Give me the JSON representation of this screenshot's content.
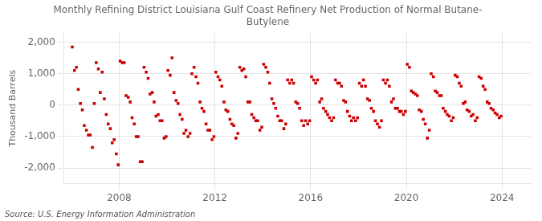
{
  "chart_data": {
    "type": "scatter",
    "title": "Monthly Refining District Louisiana Gulf Coast Refinery Net Production of Normal Butane-\nButylene",
    "ylabel": "Thousand Barrels",
    "annotation": "Source: U.S. Energy Information Administration",
    "color": "#cc0000",
    "marker": "square",
    "grid": true,
    "xlim": [
      2005.7,
      2025.2
    ],
    "xticks": [
      2008,
      2012,
      2016,
      2020,
      2024
    ],
    "ylim": [
      -2500,
      2300
    ],
    "yticks": [
      {
        "value": -2000,
        "label": "-2,000"
      },
      {
        "value": -1000,
        "label": "-1,000"
      },
      0,
      {
        "value": 1000,
        "label": "1,000"
      },
      {
        "value": 2000,
        "label": "2,000"
      }
    ],
    "x": [
      2006.04,
      2006.13,
      2006.21,
      2006.29,
      2006.38,
      2006.46,
      2006.54,
      2006.63,
      2006.71,
      2006.79,
      2006.88,
      2006.96,
      2007.04,
      2007.13,
      2007.21,
      2007.29,
      2007.38,
      2007.46,
      2007.54,
      2007.63,
      2007.71,
      2007.79,
      2007.88,
      2007.96,
      2008.04,
      2008.13,
      2008.21,
      2008.29,
      2008.38,
      2008.46,
      2008.54,
      2008.63,
      2008.71,
      2008.79,
      2008.88,
      2008.96,
      2009.04,
      2009.13,
      2009.21,
      2009.29,
      2009.38,
      2009.46,
      2009.54,
      2009.63,
      2009.71,
      2009.79,
      2009.88,
      2009.96,
      2010.04,
      2010.13,
      2010.21,
      2010.29,
      2010.38,
      2010.46,
      2010.54,
      2010.63,
      2010.71,
      2010.79,
      2010.88,
      2010.96,
      2011.04,
      2011.13,
      2011.21,
      2011.29,
      2011.38,
      2011.46,
      2011.54,
      2011.63,
      2011.71,
      2011.79,
      2011.88,
      2011.96,
      2012.04,
      2012.13,
      2012.21,
      2012.29,
      2012.38,
      2012.46,
      2012.54,
      2012.63,
      2012.71,
      2012.79,
      2012.88,
      2012.96,
      2013.04,
      2013.13,
      2013.21,
      2013.29,
      2013.38,
      2013.46,
      2013.54,
      2013.63,
      2013.71,
      2013.79,
      2013.88,
      2013.96,
      2014.04,
      2014.13,
      2014.21,
      2014.29,
      2014.38,
      2014.46,
      2014.54,
      2014.63,
      2014.71,
      2014.79,
      2014.88,
      2014.96,
      2015.04,
      2015.13,
      2015.21,
      2015.29,
      2015.38,
      2015.46,
      2015.54,
      2015.63,
      2015.71,
      2015.79,
      2015.88,
      2015.96,
      2016.04,
      2016.13,
      2016.21,
      2016.29,
      2016.38,
      2016.46,
      2016.54,
      2016.63,
      2016.71,
      2016.79,
      2016.88,
      2016.96,
      2017.04,
      2017.13,
      2017.21,
      2017.29,
      2017.38,
      2017.46,
      2017.54,
      2017.63,
      2017.71,
      2017.79,
      2017.88,
      2017.96,
      2018.04,
      2018.13,
      2018.21,
      2018.29,
      2018.38,
      2018.46,
      2018.54,
      2018.63,
      2018.71,
      2018.79,
      2018.88,
      2018.96,
      2019.04,
      2019.13,
      2019.21,
      2019.29,
      2019.38,
      2019.46,
      2019.54,
      2019.63,
      2019.71,
      2019.79,
      2019.88,
      2019.96,
      2020.04,
      2020.13,
      2020.21,
      2020.29,
      2020.38,
      2020.46,
      2020.54,
      2020.63,
      2020.71,
      2020.79,
      2020.88,
      2020.96,
      2021.04,
      2021.13,
      2021.21,
      2021.29,
      2021.38,
      2021.46,
      2021.54,
      2021.63,
      2021.71,
      2021.79,
      2021.88,
      2021.96,
      2022.04,
      2022.13,
      2022.21,
      2022.29,
      2022.38,
      2022.46,
      2022.54,
      2022.63,
      2022.71,
      2022.79,
      2022.88,
      2022.96,
      2023.04,
      2023.13,
      2023.21,
      2023.29,
      2023.38,
      2023.46,
      2023.54,
      2023.63,
      2023.71,
      2023.79,
      2023.88,
      2023.96
    ],
    "values": [
      1850,
      1100,
      1200,
      500,
      50,
      -150,
      -650,
      -800,
      -950,
      -950,
      -1350,
      50,
      1350,
      1150,
      400,
      1050,
      200,
      -300,
      -600,
      -750,
      -1200,
      -1100,
      -1550,
      -1900,
      1400,
      1350,
      1350,
      300,
      250,
      100,
      -400,
      -600,
      -1000,
      -1000,
      -1800,
      -1800,
      1200,
      1050,
      850,
      350,
      400,
      100,
      -350,
      -300,
      -500,
      -500,
      -1050,
      -1000,
      1100,
      950,
      1500,
      400,
      150,
      50,
      -300,
      -450,
      -900,
      -800,
      -1000,
      -900,
      1000,
      1200,
      900,
      700,
      100,
      -100,
      -200,
      -600,
      -800,
      -800,
      -1100,
      -1000,
      1050,
      900,
      800,
      600,
      100,
      -150,
      -200,
      -450,
      -600,
      -650,
      -1050,
      -900,
      1200,
      1100,
      1150,
      900,
      100,
      100,
      -300,
      -400,
      -500,
      -500,
      -800,
      -700,
      1300,
      1200,
      1050,
      700,
      200,
      50,
      -100,
      -350,
      -500,
      -500,
      -750,
      -600,
      800,
      700,
      800,
      700,
      100,
      50,
      -100,
      -500,
      -650,
      -500,
      -600,
      -500,
      900,
      800,
      700,
      800,
      100,
      200,
      -100,
      -200,
      -300,
      -400,
      -500,
      -400,
      800,
      700,
      700,
      600,
      150,
      100,
      -200,
      -350,
      -500,
      -400,
      -500,
      -400,
      700,
      600,
      800,
      600,
      200,
      150,
      -100,
      -200,
      -500,
      -600,
      -700,
      -500,
      800,
      700,
      800,
      600,
      100,
      200,
      -100,
      -100,
      -200,
      -200,
      -300,
      -200,
      1300,
      1200,
      450,
      400,
      350,
      300,
      -150,
      -200,
      -450,
      -600,
      -1050,
      -800,
      1000,
      900,
      450,
      400,
      300,
      300,
      -100,
      -200,
      -300,
      -350,
      -500,
      -400,
      950,
      900,
      700,
      600,
      50,
      100,
      -150,
      -200,
      -350,
      -300,
      -500,
      -400,
      900,
      850,
      600,
      500,
      100,
      50,
      -100,
      -150,
      -250,
      -300,
      -400,
      -350
    ]
  }
}
